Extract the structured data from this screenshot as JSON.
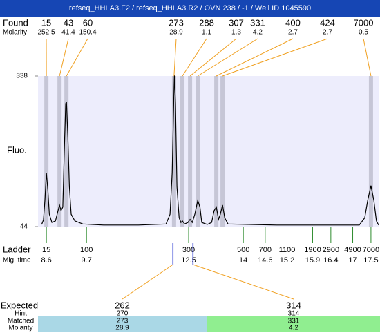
{
  "title": "refseq_HHLA3.F2 / refseq_HHLA3.R2 / OVN 238 / -1 / Well ID 1045590",
  "found": {
    "label": "Found",
    "molarity_label": "Molarity",
    "sizes": [
      15,
      43,
      60,
      273,
      288,
      307,
      331,
      400,
      424,
      7000
    ],
    "molarities": [
      252.5,
      41.4,
      150.4,
      28.9,
      1.1,
      1.3,
      4.2,
      2.7,
      2.7,
      0.5
    ],
    "times": [
      8.6,
      8.96,
      9.15,
      12.1,
      12.33,
      12.54,
      12.75,
      13.26,
      13.43,
      17.5
    ]
  },
  "plot": {
    "ylabel": "Fluo.",
    "ylim": [
      44,
      338
    ],
    "yticks": [
      338,
      44
    ],
    "xlim": [
      8.37,
      17.71
    ],
    "trace": {
      "x": [
        8.47,
        8.52,
        8.56,
        8.6,
        8.64,
        8.68,
        8.75,
        8.85,
        8.92,
        8.96,
        9.0,
        9.05,
        9.09,
        9.13,
        9.15,
        9.19,
        9.23,
        9.28,
        9.38,
        9.6,
        10.17,
        11.12,
        11.88,
        11.99,
        12.05,
        12.09,
        12.11,
        12.14,
        12.18,
        12.24,
        12.29,
        12.33,
        12.39,
        12.48,
        12.54,
        12.6,
        12.67,
        12.75,
        12.81,
        12.86,
        13.01,
        13.13,
        13.2,
        13.26,
        13.32,
        13.37,
        13.43,
        13.49,
        13.58,
        14.91,
        17.18,
        17.33,
        17.41,
        17.5,
        17.58,
        17.65,
        17.71
      ],
      "y": [
        48,
        57,
        95,
        149,
        115,
        68,
        52,
        55,
        75,
        86,
        75,
        82,
        190,
        284,
        288,
        217,
        122,
        68,
        55,
        49,
        47,
        47,
        49,
        68,
        149,
        284,
        340,
        284,
        122,
        61,
        52,
        55,
        49,
        52,
        58,
        52,
        68,
        95,
        82,
        52,
        48,
        52,
        75,
        82,
        58,
        68,
        86,
        61,
        49,
        47,
        47,
        61,
        95,
        124,
        95,
        55,
        47
      ]
    }
  },
  "ladder": {
    "label": "Ladder",
    "time_label": "Mig. time",
    "sizes": [
      15,
      100,
      300,
      500,
      700,
      1100,
      1900,
      2900,
      4900,
      7000
    ],
    "times": [
      8.6,
      9.7,
      12.5,
      14,
      14.6,
      15.2,
      15.9,
      16.4,
      17,
      17.5
    ]
  },
  "expected": {
    "row_labels": [
      "Expected",
      "Hint",
      "Matched",
      "Molarity"
    ],
    "columns": [
      {
        "expected": 262,
        "hint": 270,
        "matched": 273,
        "molarity": 28.9,
        "time": 12.07
      },
      {
        "expected": 314,
        "hint": 314,
        "matched": 331,
        "molarity": 4.2,
        "time": 12.62
      }
    ]
  }
}
